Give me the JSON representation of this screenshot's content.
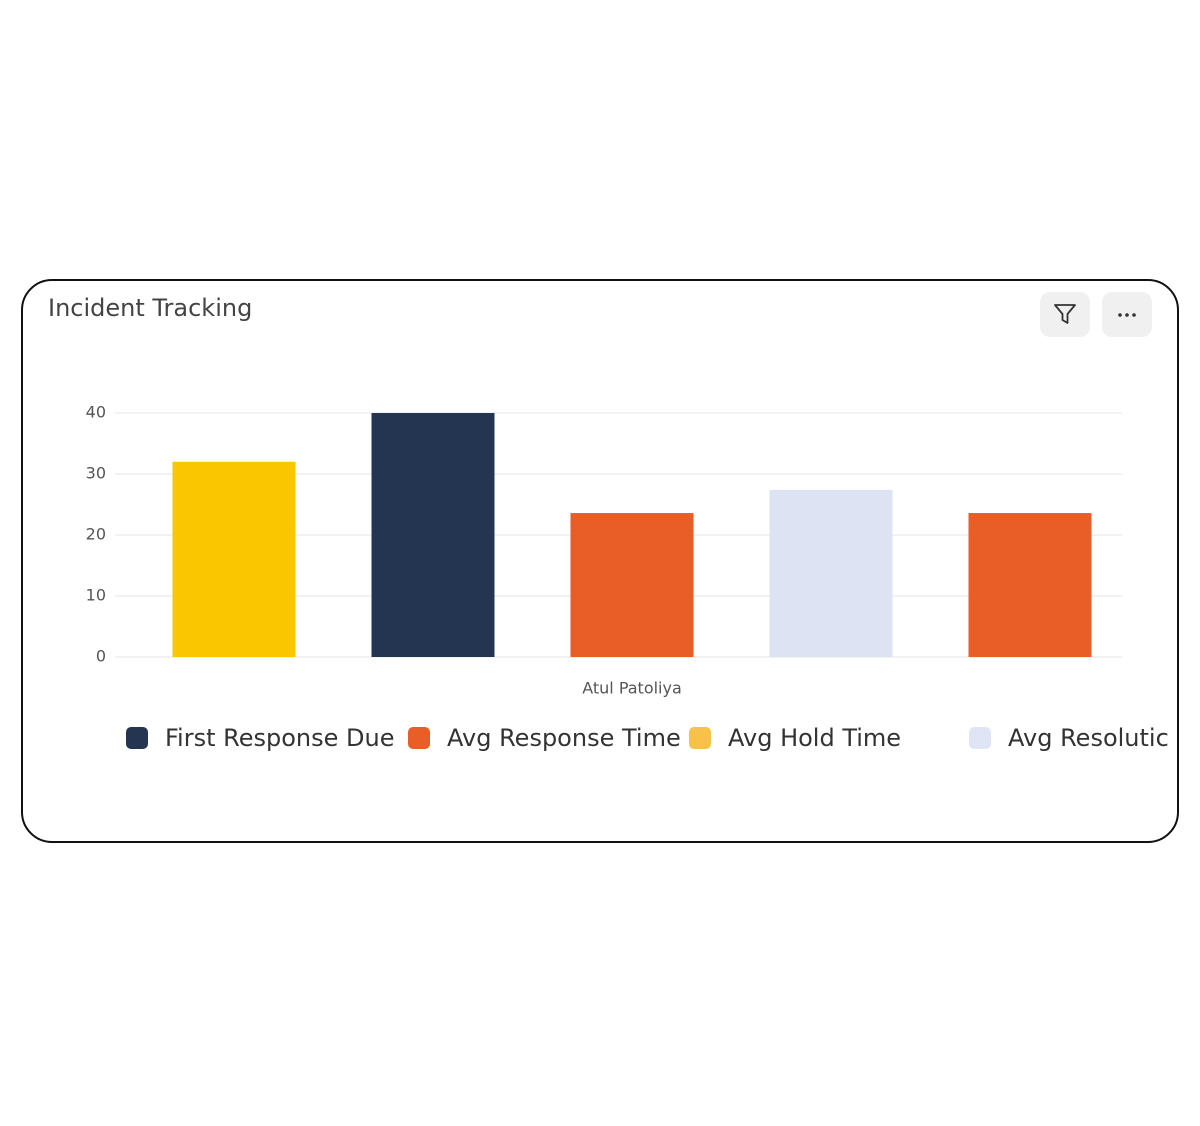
{
  "chart_data": {
    "type": "bar",
    "title": "Incident Tracking",
    "categories": [
      "Atul Patoliya"
    ],
    "series": [
      {
        "color": "#fac600",
        "values": [
          32
        ]
      },
      {
        "color": "#233551",
        "values": [
          40
        ]
      },
      {
        "color": "#e95e27",
        "values": [
          23.6
        ]
      },
      {
        "color": "#dce3f3",
        "values": [
          27.4
        ]
      },
      {
        "color": "#e95e27",
        "values": [
          23.6
        ]
      }
    ],
    "legend": [
      {
        "name": "First Response Due",
        "color": "#233551"
      },
      {
        "name": "Avg Response Time",
        "color": "#e95e27"
      },
      {
        "name": "Avg Hold Time",
        "color": "#f7c14a"
      },
      {
        "name": "Avg Resolutic",
        "color": "#dfe5f5"
      }
    ],
    "ylim": [
      0,
      40
    ],
    "yticks": [
      0,
      10,
      20,
      30,
      40
    ],
    "grid": true
  }
}
